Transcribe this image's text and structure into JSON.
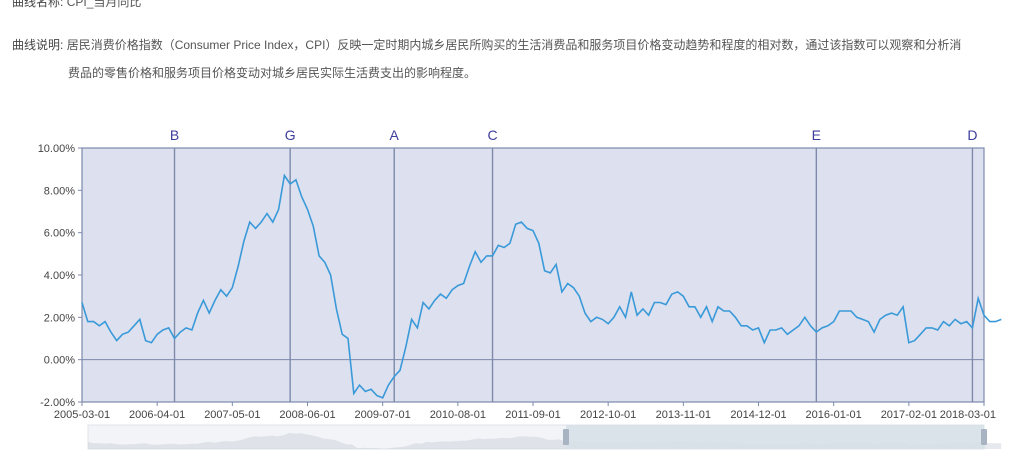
{
  "meta": {
    "name_label": "曲线名称:",
    "name_value": "CPI_当月同比",
    "desc_label": "曲线说明:",
    "desc_line1": "居民消费价格指数（Consumer Price Index，CPI）反映一定时期内城乡居民所购买的生活消费品和服务项目价格变动趋势和程度的相对数，通过该指数可以观察和分析消",
    "desc_line2": "费品的零售价格和服务项目价格变动对城乡居民实际生活费支出的影响程度。"
  },
  "chart_data": {
    "type": "line",
    "title": "",
    "xlabel": "",
    "ylabel": "",
    "ylim": [
      -2,
      10
    ],
    "y_ticks": [
      "-2.00%",
      "0.00%",
      "2.00%",
      "4.00%",
      "6.00%",
      "8.00%",
      "10.00%"
    ],
    "x_ticks": [
      "2005-03-01",
      "2006-04-01",
      "2007-05-01",
      "2008-06-01",
      "2009-07-01",
      "2010-08-01",
      "2011-09-01",
      "2012-10-01",
      "2013-11-01",
      "2014-12-01",
      "2016-01-01",
      "2017-02-01",
      "2018-03-01"
    ],
    "x_range": [
      "2005-03",
      "2018-03"
    ],
    "grid": false,
    "series": [
      {
        "color": "#3a9ad9",
        "start": "2005-03",
        "values": [
          2.7,
          1.8,
          1.8,
          1.6,
          1.8,
          1.3,
          0.9,
          1.2,
          1.3,
          1.6,
          1.9,
          0.9,
          0.8,
          1.2,
          1.4,
          1.5,
          1.0,
          1.3,
          1.5,
          1.4,
          2.2,
          2.8,
          2.2,
          2.8,
          3.3,
          3.0,
          3.4,
          4.4,
          5.6,
          6.5,
          6.2,
          6.5,
          6.9,
          6.5,
          7.1,
          8.7,
          8.3,
          8.5,
          7.7,
          7.1,
          6.3,
          4.9,
          4.6,
          4.0,
          2.4,
          1.2,
          1.0,
          -1.6,
          -1.2,
          -1.5,
          -1.4,
          -1.7,
          -1.8,
          -1.2,
          -0.8,
          -0.5,
          0.6,
          1.9,
          1.5,
          2.7,
          2.4,
          2.8,
          3.1,
          2.9,
          3.3,
          3.5,
          3.6,
          4.4,
          5.1,
          4.6,
          4.9,
          4.9,
          5.4,
          5.3,
          5.5,
          6.4,
          6.5,
          6.2,
          6.1,
          5.5,
          4.2,
          4.1,
          4.5,
          3.2,
          3.6,
          3.4,
          3.0,
          2.2,
          1.8,
          2.0,
          1.9,
          1.7,
          2.0,
          2.5,
          2.0,
          3.2,
          2.1,
          2.4,
          2.1,
          2.7,
          2.7,
          2.6,
          3.1,
          3.2,
          3.0,
          2.5,
          2.5,
          2.0,
          2.5,
          1.8,
          2.5,
          2.3,
          2.3,
          2.0,
          1.6,
          1.6,
          1.4,
          1.5,
          0.8,
          1.4,
          1.4,
          1.5,
          1.2,
          1.4,
          1.6,
          2.0,
          1.6,
          1.3,
          1.5,
          1.6,
          1.8,
          2.3,
          2.3,
          2.3,
          2.0,
          1.9,
          1.8,
          1.3,
          1.9,
          2.1,
          2.2,
          2.1,
          2.5,
          0.8,
          0.9,
          1.2,
          1.5,
          1.5,
          1.4,
          1.8,
          1.6,
          1.9,
          1.7,
          1.8,
          1.5,
          2.9,
          2.1,
          1.8,
          1.8,
          1.9
        ]
      }
    ],
    "markers": [
      {
        "label": "B",
        "date": "2006-07"
      },
      {
        "label": "G",
        "date": "2008-03"
      },
      {
        "label": "A",
        "date": "2009-09"
      },
      {
        "label": "C",
        "date": "2011-02"
      },
      {
        "label": "E",
        "date": "2015-10"
      },
      {
        "label": "D",
        "date": "2018-01"
      }
    ]
  },
  "colors": {
    "plot_bg": "#dde0ee",
    "frame": "#7d8aac",
    "axis_text": "#444444",
    "marker_text": "#3d3d9a",
    "line": "#3a9ad9",
    "zoom_bg": "#f2f4f7",
    "zoom_selected": "#d7dfe8",
    "zoom_shadow": "#c8ced6"
  },
  "zoom": {
    "start_percent": 0,
    "end_percent": 100
  }
}
